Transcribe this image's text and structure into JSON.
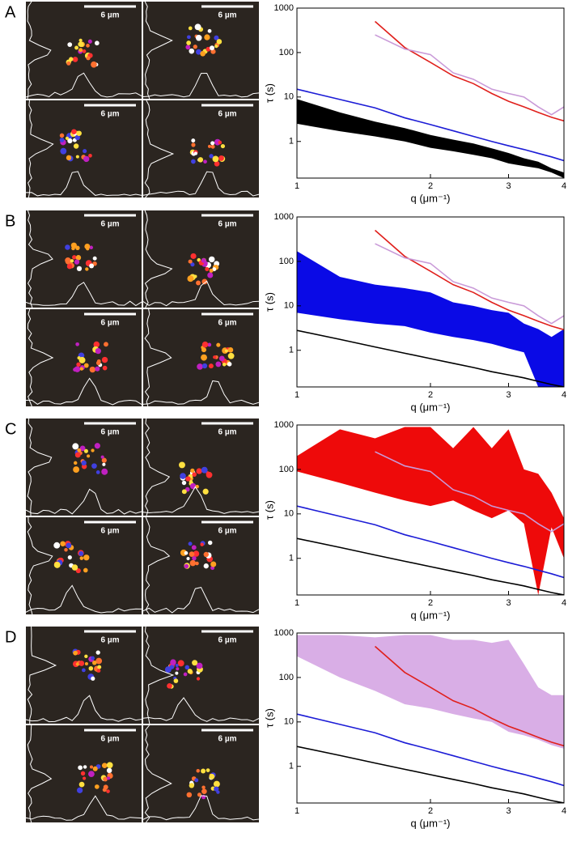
{
  "panels": [
    {
      "label": "A",
      "scale_bar_labels": [
        "6 µm",
        "6 µm",
        "6 µm",
        "6 µm"
      ]
    },
    {
      "label": "B",
      "scale_bar_labels": [
        "6 µm",
        "6 µm",
        "6 µm",
        "6 µm"
      ]
    },
    {
      "label": "C",
      "scale_bar_labels": [
        "6 µm",
        "6 µm",
        "6 µm",
        "6 µm"
      ]
    },
    {
      "label": "D",
      "scale_bar_labels": [
        "6 µm",
        "6 µm",
        "6 µm",
        "6 µm"
      ]
    }
  ],
  "chart_data": [
    {
      "type": "line",
      "x_label": "q (μm⁻¹)",
      "y_label": "τ (s)",
      "xscale": "log",
      "yscale": "log",
      "x": [
        1,
        1.25,
        1.5,
        1.75,
        2,
        2.25,
        2.5,
        2.75,
        3,
        3.25,
        3.5,
        3.75,
        4
      ],
      "xlim": [
        1,
        4
      ],
      "ylim": [
        0.15,
        1000
      ],
      "xticks": [
        1,
        2,
        3,
        4
      ],
      "yticks": [
        1,
        10,
        100,
        1000
      ],
      "series": [
        {
          "color": "#000000",
          "low": [
            2.5,
            1.7,
            1.3,
            1.0,
            0.72,
            0.6,
            0.5,
            0.42,
            0.32,
            0.28,
            0.25,
            0.2,
            0.15
          ],
          "high": [
            9,
            4.5,
            2.8,
            2.0,
            1.4,
            1.1,
            0.9,
            0.7,
            0.55,
            0.42,
            0.35,
            0.25,
            0.2
          ]
        },
        {
          "color": "#1c1cd6",
          "values": [
            15,
            8.8,
            5.7,
            3.4,
            2.4,
            1.74,
            1.3,
            1.0,
            0.8,
            0.66,
            0.54,
            0.45,
            0.37
          ]
        },
        {
          "color": "#e0201c",
          "values": [
            null,
            null,
            500,
            130,
            60,
            30,
            20,
            12,
            8,
            6,
            4.5,
            3.5,
            2.9
          ]
        },
        {
          "color": "#c99ad8",
          "values": [
            null,
            null,
            250,
            120,
            90,
            35,
            25,
            15,
            12,
            10,
            6,
            4,
            6
          ]
        }
      ]
    },
    {
      "type": "line",
      "x_label": "q (μm⁻¹)",
      "y_label": "τ (s)",
      "xscale": "log",
      "yscale": "log",
      "x": [
        1,
        1.25,
        1.5,
        1.75,
        2,
        2.25,
        2.5,
        2.75,
        3,
        3.25,
        3.5,
        3.75,
        4
      ],
      "xlim": [
        1,
        4
      ],
      "ylim": [
        0.15,
        1000
      ],
      "xticks": [
        1,
        2,
        3,
        4
      ],
      "yticks": [
        1,
        10,
        100,
        1000
      ],
      "series": [
        {
          "color": "#0a0ae6",
          "low": [
            7,
            5,
            4,
            3.5,
            2.5,
            2,
            1.7,
            1.4,
            1.1,
            0.9,
            0.15,
            0.15,
            0.15
          ],
          "high": [
            170,
            45,
            30,
            25,
            20,
            12,
            10,
            8,
            7,
            4,
            3,
            2,
            3
          ]
        },
        {
          "color": "#000000",
          "values": [
            2.8,
            1.76,
            1.19,
            0.86,
            0.65,
            0.51,
            0.41,
            0.33,
            0.28,
            0.24,
            0.2,
            0.17,
            0.15
          ]
        },
        {
          "color": "#e0201c",
          "values": [
            null,
            null,
            500,
            130,
            60,
            30,
            20,
            12,
            8,
            6,
            4.5,
            3.5,
            2.9
          ]
        },
        {
          "color": "#c99ad8",
          "values": [
            null,
            null,
            250,
            120,
            90,
            35,
            25,
            15,
            12,
            10,
            6,
            4,
            6
          ]
        }
      ]
    },
    {
      "type": "line",
      "x_label": "q (μm⁻¹)",
      "y_label": "τ (s)",
      "xscale": "log",
      "yscale": "log",
      "x": [
        1,
        1.25,
        1.5,
        1.75,
        2,
        2.25,
        2.5,
        2.75,
        3,
        3.25,
        3.5,
        3.75,
        4
      ],
      "xlim": [
        1,
        4
      ],
      "ylim": [
        0.15,
        1000
      ],
      "xticks": [
        1,
        2,
        3,
        4
      ],
      "yticks": [
        1,
        10,
        100,
        1000
      ],
      "series": [
        {
          "color": "#ee0a0a",
          "low": [
            90,
            50,
            30,
            20,
            15,
            20,
            12,
            8,
            12,
            6,
            0.15,
            5,
            1
          ],
          "high": [
            200,
            800,
            500,
            900,
            900,
            300,
            900,
            300,
            800,
            100,
            80,
            30,
            8
          ]
        },
        {
          "color": "#000000",
          "values": [
            2.8,
            1.76,
            1.19,
            0.86,
            0.65,
            0.51,
            0.41,
            0.33,
            0.28,
            0.24,
            0.2,
            0.17,
            0.15
          ]
        },
        {
          "color": "#1c1cd6",
          "values": [
            15,
            8.8,
            5.7,
            3.4,
            2.4,
            1.74,
            1.3,
            1.0,
            0.8,
            0.66,
            0.54,
            0.45,
            0.37
          ]
        },
        {
          "color": "#c99ad8",
          "values": [
            null,
            null,
            250,
            120,
            90,
            35,
            25,
            15,
            12,
            10,
            6,
            4,
            6
          ]
        }
      ]
    },
    {
      "type": "line",
      "x_label": "q (μm⁻¹)",
      "y_label": "τ (s)",
      "xscale": "log",
      "yscale": "log",
      "x": [
        1,
        1.25,
        1.5,
        1.75,
        2,
        2.25,
        2.5,
        2.75,
        3,
        3.25,
        3.5,
        3.75,
        4
      ],
      "xlim": [
        1,
        4
      ],
      "ylim": [
        0.15,
        1000
      ],
      "xticks": [
        1,
        2,
        3,
        4
      ],
      "yticks": [
        1,
        10,
        100,
        1000
      ],
      "series": [
        {
          "color": "#d9aee6",
          "low": [
            300,
            100,
            50,
            25,
            20,
            15,
            12,
            10,
            6,
            5,
            4,
            3,
            2.5
          ],
          "high": [
            900,
            900,
            800,
            900,
            900,
            700,
            700,
            600,
            700,
            200,
            60,
            40,
            40
          ]
        },
        {
          "color": "#000000",
          "values": [
            2.8,
            1.76,
            1.19,
            0.86,
            0.65,
            0.51,
            0.41,
            0.33,
            0.28,
            0.24,
            0.2,
            0.17,
            0.15
          ]
        },
        {
          "color": "#1c1cd6",
          "values": [
            15,
            8.8,
            5.7,
            3.4,
            2.4,
            1.74,
            1.3,
            1.0,
            0.8,
            0.66,
            0.54,
            0.45,
            0.37
          ]
        },
        {
          "color": "#e0201c",
          "values": [
            null,
            null,
            500,
            130,
            60,
            30,
            20,
            12,
            8,
            6,
            4.5,
            3.5,
            2.9
          ]
        }
      ]
    }
  ]
}
